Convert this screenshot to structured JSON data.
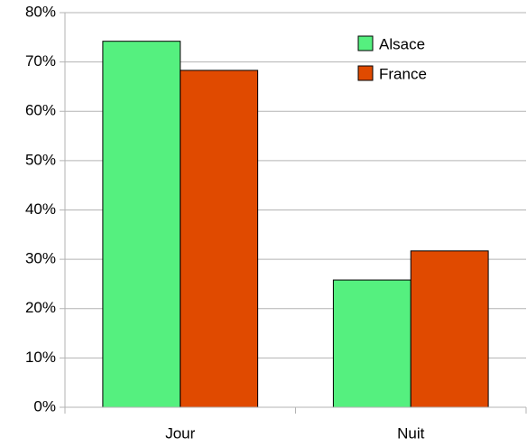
{
  "chart_data": {
    "type": "bar",
    "categories": [
      "Jour",
      "Nuit"
    ],
    "series": [
      {
        "name": "Alsace",
        "color": "#55f07f",
        "values": [
          74.2,
          25.8
        ]
      },
      {
        "name": "France",
        "color": "#e04a00",
        "values": [
          68.3,
          31.7
        ]
      }
    ],
    "ylim": [
      0,
      80
    ],
    "yticks": [
      {
        "value": 0,
        "label": "0%"
      },
      {
        "value": 10,
        "label": "10%"
      },
      {
        "value": 20,
        "label": "20%"
      },
      {
        "value": 30,
        "label": "30%"
      },
      {
        "value": 40,
        "label": "40%"
      },
      {
        "value": 50,
        "label": "50%"
      },
      {
        "value": 60,
        "label": "60%"
      },
      {
        "value": 70,
        "label": "70%"
      },
      {
        "value": 80,
        "label": "80%"
      }
    ],
    "grid": true,
    "legend": "upper right"
  }
}
